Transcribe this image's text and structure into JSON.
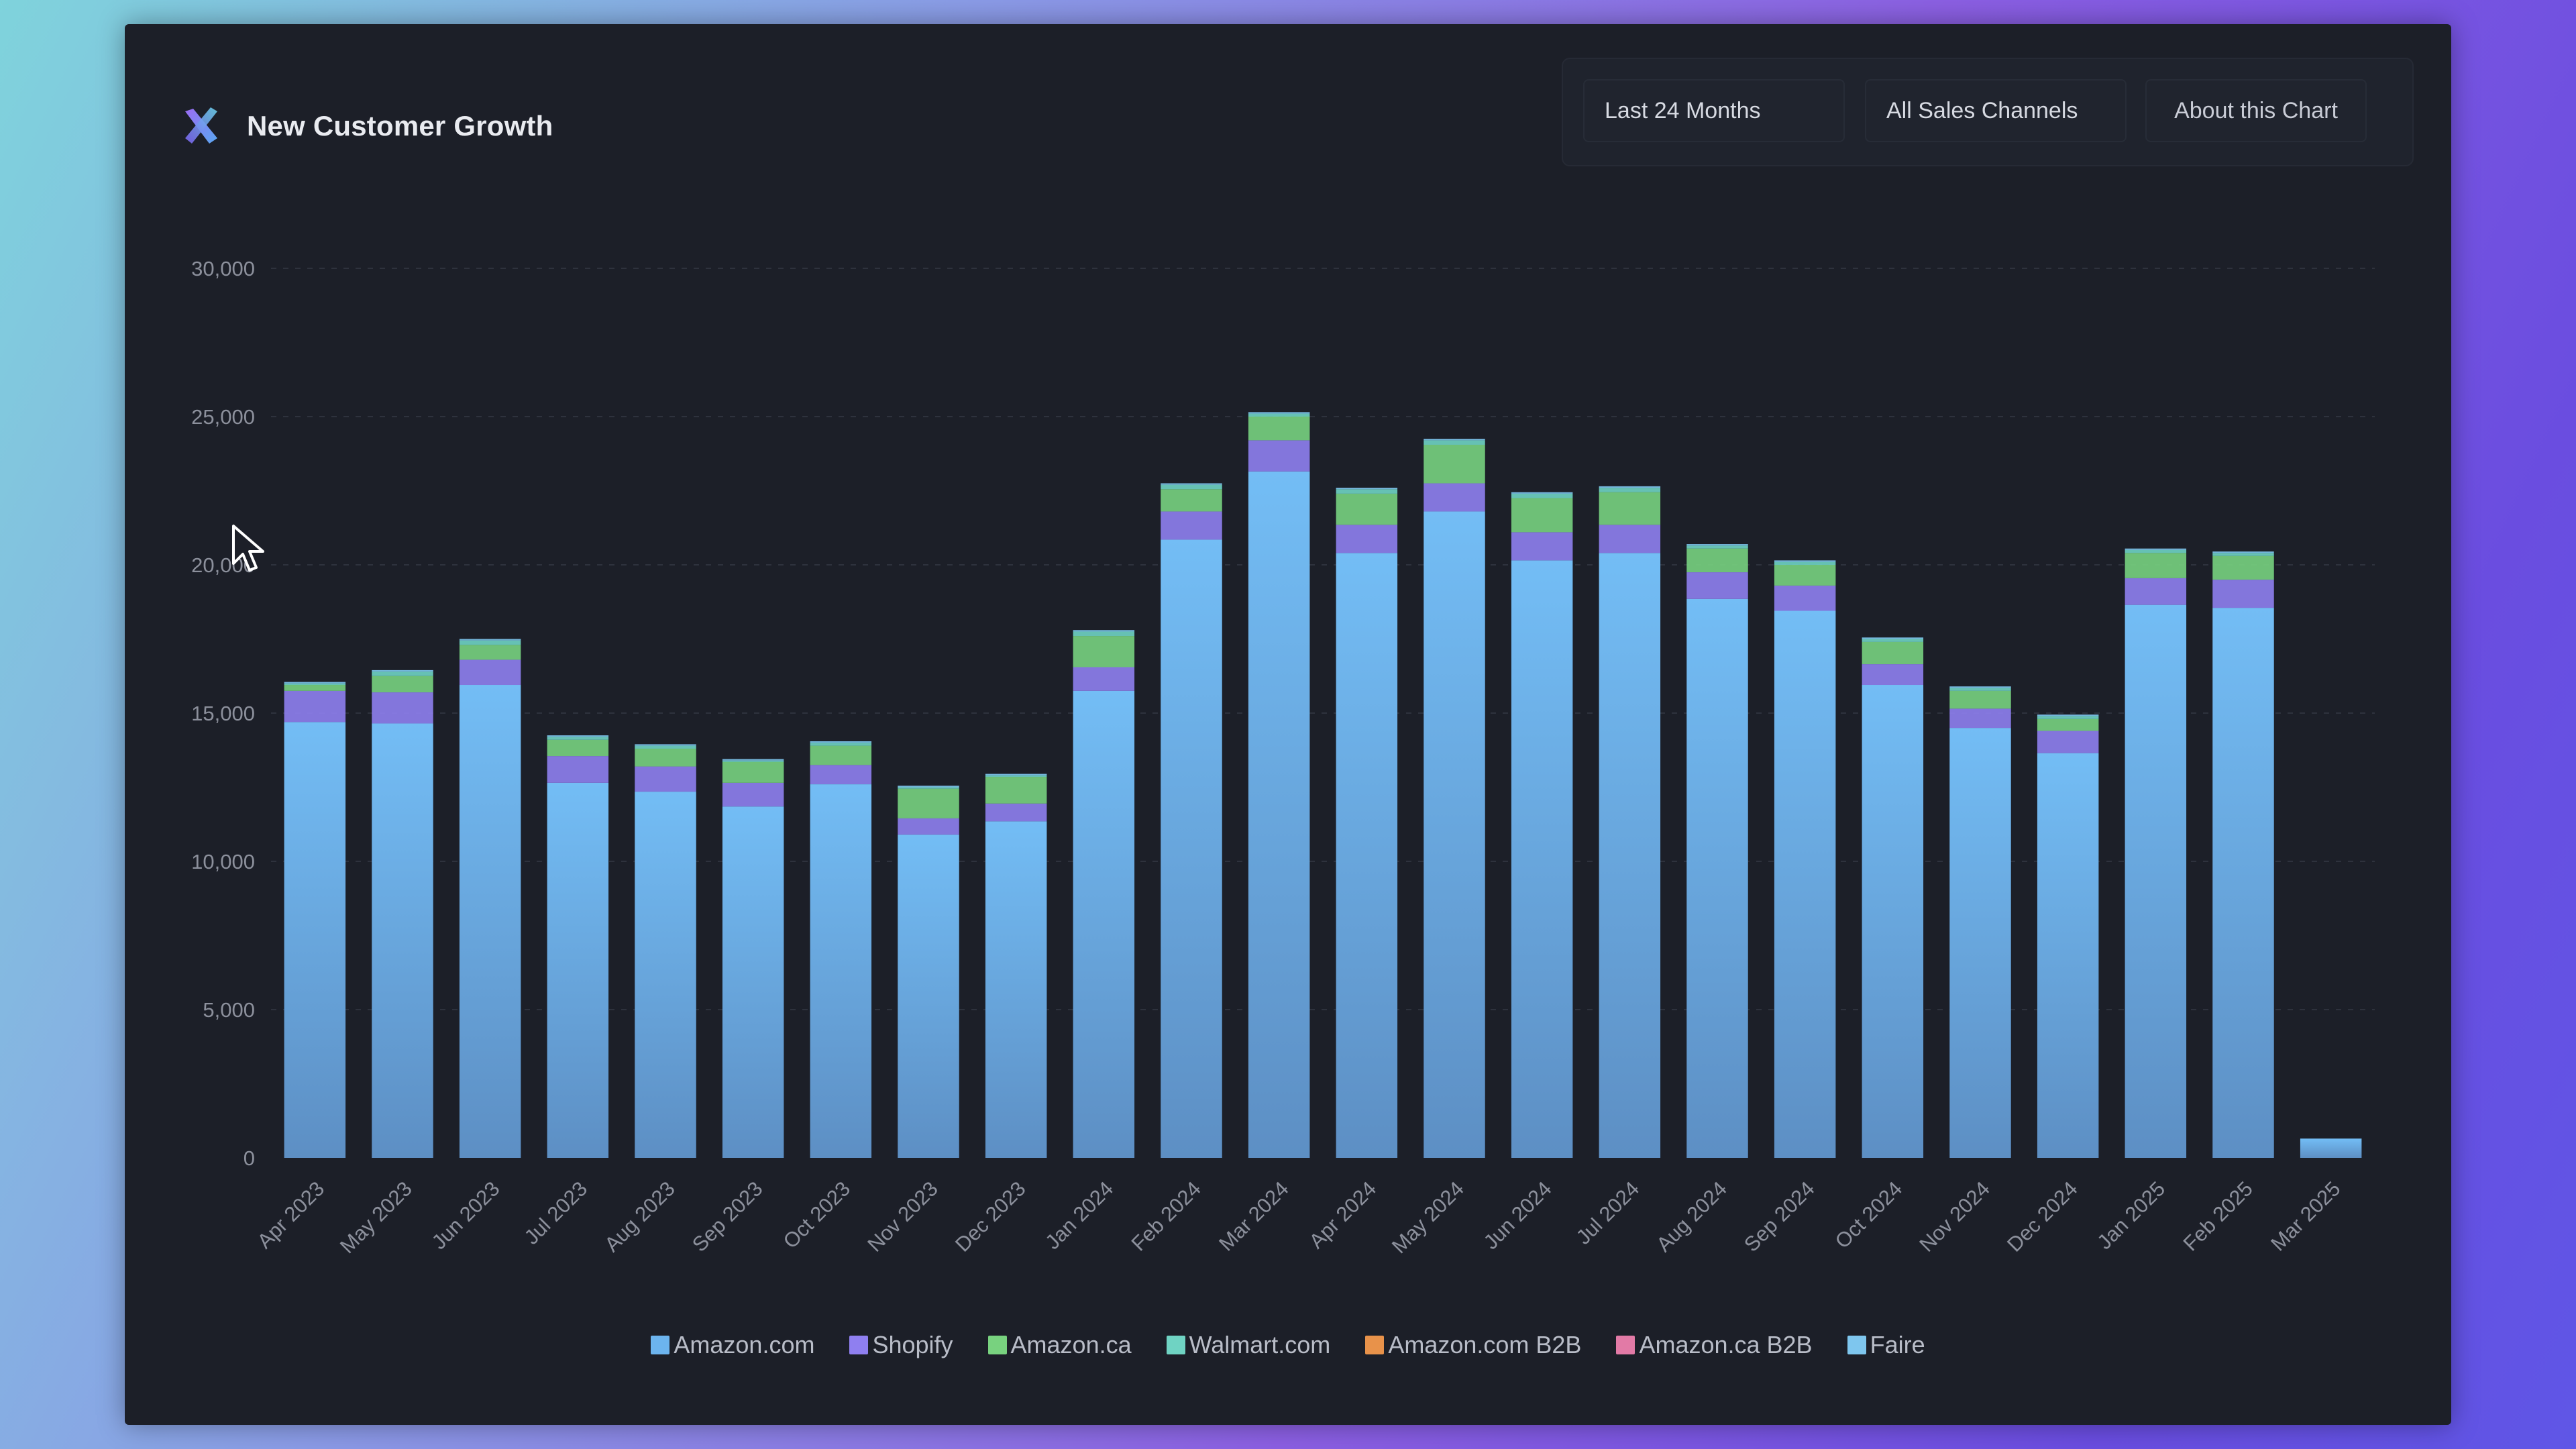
{
  "header": {
    "title": "New Customer Growth",
    "logo_icon": "cross-logo-icon"
  },
  "controls": {
    "range_label": "Last 24 Months",
    "channel_label": "All Sales Channels",
    "about_label": "About this Chart"
  },
  "colors": {
    "panel_bg": "#1c1f28",
    "grid": "#3a3f4c",
    "axis_text": "#8c909c"
  },
  "chart_data": {
    "type": "bar",
    "stacked": true,
    "title": "New Customer Growth",
    "xlabel": "",
    "ylabel": "",
    "ylim": [
      0,
      30000
    ],
    "yticks": [
      0,
      5000,
      10000,
      15000,
      20000,
      25000,
      30000
    ],
    "ytick_labels": [
      "0",
      "5,000",
      "10,000",
      "15,000",
      "20,000",
      "25,000",
      "30,000"
    ],
    "grid": true,
    "legend_position": "bottom",
    "categories": [
      "Apr 2023",
      "May 2023",
      "Jun 2023",
      "Jul 2023",
      "Aug 2023",
      "Sep 2023",
      "Oct 2023",
      "Nov 2023",
      "Dec 2023",
      "Jan 2024",
      "Feb 2024",
      "Mar 2024",
      "Apr 2024",
      "May 2024",
      "Jun 2024",
      "Jul 2024",
      "Aug 2024",
      "Sep 2024",
      "Oct 2024",
      "Nov 2024",
      "Dec 2024",
      "Jan 2025",
      "Feb 2025",
      "Mar 2025"
    ],
    "series": [
      {
        "name": "Amazon.com",
        "color": "#6cb4ee",
        "values": [
          14700,
          14650,
          15950,
          12650,
          12350,
          11850,
          12600,
          10900,
          11350,
          15750,
          20850,
          23150,
          20400,
          21800,
          20150,
          20400,
          18850,
          18450,
          15950,
          14500,
          13650,
          18650,
          18550,
          650
        ]
      },
      {
        "name": "Shopify",
        "color": "#8f7ff0",
        "values": [
          1050,
          1050,
          850,
          900,
          850,
          800,
          650,
          550,
          600,
          800,
          950,
          1050,
          950,
          950,
          950,
          950,
          900,
          850,
          700,
          650,
          750,
          900,
          950,
          0
        ]
      },
      {
        "name": "Amazon.ca",
        "color": "#78d27f",
        "values": [
          200,
          550,
          500,
          550,
          600,
          700,
          650,
          1000,
          900,
          1050,
          750,
          800,
          1050,
          1300,
          1150,
          1100,
          800,
          700,
          750,
          600,
          400,
          850,
          800,
          0
        ]
      },
      {
        "name": "Walmart.com",
        "color": "#6fd3c3",
        "values": [
          50,
          150,
          150,
          100,
          100,
          50,
          100,
          50,
          50,
          150,
          150,
          100,
          150,
          150,
          150,
          150,
          100,
          100,
          100,
          100,
          100,
          100,
          100,
          0
        ]
      },
      {
        "name": "Amazon.com B2B",
        "color": "#e8924a",
        "values": [
          0,
          0,
          0,
          0,
          0,
          0,
          0,
          0,
          0,
          0,
          0,
          0,
          0,
          0,
          0,
          0,
          0,
          0,
          0,
          0,
          0,
          0,
          0,
          0
        ]
      },
      {
        "name": "Amazon.ca B2B",
        "color": "#e27aa6",
        "values": [
          0,
          0,
          0,
          0,
          0,
          0,
          0,
          0,
          0,
          0,
          0,
          0,
          0,
          0,
          0,
          0,
          0,
          0,
          0,
          0,
          0,
          0,
          0,
          0
        ]
      },
      {
        "name": "Faire",
        "color": "#7ec6ee",
        "values": [
          50,
          50,
          50,
          50,
          50,
          50,
          50,
          50,
          50,
          50,
          50,
          50,
          50,
          50,
          50,
          50,
          50,
          50,
          50,
          50,
          50,
          50,
          50,
          0
        ]
      }
    ]
  }
}
